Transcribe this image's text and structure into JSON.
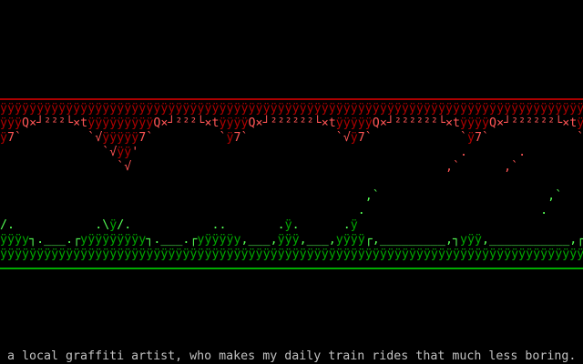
{
  "colors": {
    "sky_dark": "#b00000",
    "sky_bright": "#ff5555",
    "ground_dark": "#00aa00",
    "ground_bright": "#55ff55",
    "caption": "#c0c0c0"
  },
  "screen": {
    "rows": [
      {
        "text": "",
        "palette": ""
      },
      {
        "text": "",
        "palette": ""
      },
      {
        "text": "",
        "palette": ""
      },
      {
        "text": "",
        "palette": ""
      },
      {
        "text": "",
        "palette": ""
      },
      {
        "text": "",
        "palette": ""
      },
      {
        "text": "",
        "palette": ""
      },
      {
        "text": "ÿÿÿÿÿÿÿÿÿÿÿÿÿÿÿÿÿÿÿÿÿÿÿÿÿÿÿÿÿÿÿÿÿÿÿÿÿÿÿÿÿÿÿÿÿÿÿÿÿÿÿÿÿÿÿÿÿÿÿÿÿÿÿÿÿÿÿÿÿÿÿÿÿÿÿÿÿÿÿÿ",
        "palette": "red"
      },
      {
        "text": "ÿÿÿQ×┘²²²└×tÿÿÿÿÿÿÿÿÿQ×┘²²²└×tÿÿÿÿQ×┘²²²²²²└×tÿÿÿÿÿQ×┘²²²²²²└×tÿÿÿÿQ×┘²²²²²²└×tÿ",
        "palette": "red"
      },
      {
        "text": "ÿ7`         `√ÿÿÿÿÿ7`         `ÿ7`            `√ÿ7`            `ÿ7`            `",
        "palette": "red"
      },
      {
        "text": "              `√ÿÿ'                                            .       .",
        "palette": "red"
      },
      {
        "text": "                `√                                           ,`      ,`",
        "palette": "red"
      },
      {
        "text": "",
        "palette": ""
      },
      {
        "text": "                                                  ,`                       ,`",
        "palette": "green"
      },
      {
        "text": "                                                 .                        .",
        "palette": "green"
      },
      {
        "text": "/.           .\\ÿ/.           ..       .ÿ.      .ÿ",
        "palette": "green"
      },
      {
        "text": "ÿÿÿy┐.___.┌yÿÿÿÿÿÿÿy┐.___.┌yÿÿÿÿy,___,ÿÿÿ,___,yÿÿÿ┌,_________,┐yÿÿ,___________,┌",
        "palette": "green"
      },
      {
        "text": "ÿÿÿÿÿÿÿÿÿÿÿÿÿÿÿÿÿÿÿÿÿÿÿÿÿÿÿÿÿÿÿÿÿÿÿÿÿÿÿÿÿÿÿÿÿÿÿÿÿÿÿÿÿÿÿÿÿÿÿÿÿÿÿÿÿÿÿÿÿÿÿÿÿÿÿÿÿÿÿÿ",
        "palette": "green"
      },
      {
        "text": "",
        "palette": ""
      },
      {
        "text": "",
        "palette": ""
      },
      {
        "text": "",
        "palette": ""
      },
      {
        "text": "",
        "palette": ""
      },
      {
        "text": "",
        "palette": ""
      },
      {
        "text": "",
        "palette": ""
      },
      {
        "text": " a local graffiti artist, who makes my daily train rides that much less boring.",
        "palette": ""
      }
    ]
  }
}
